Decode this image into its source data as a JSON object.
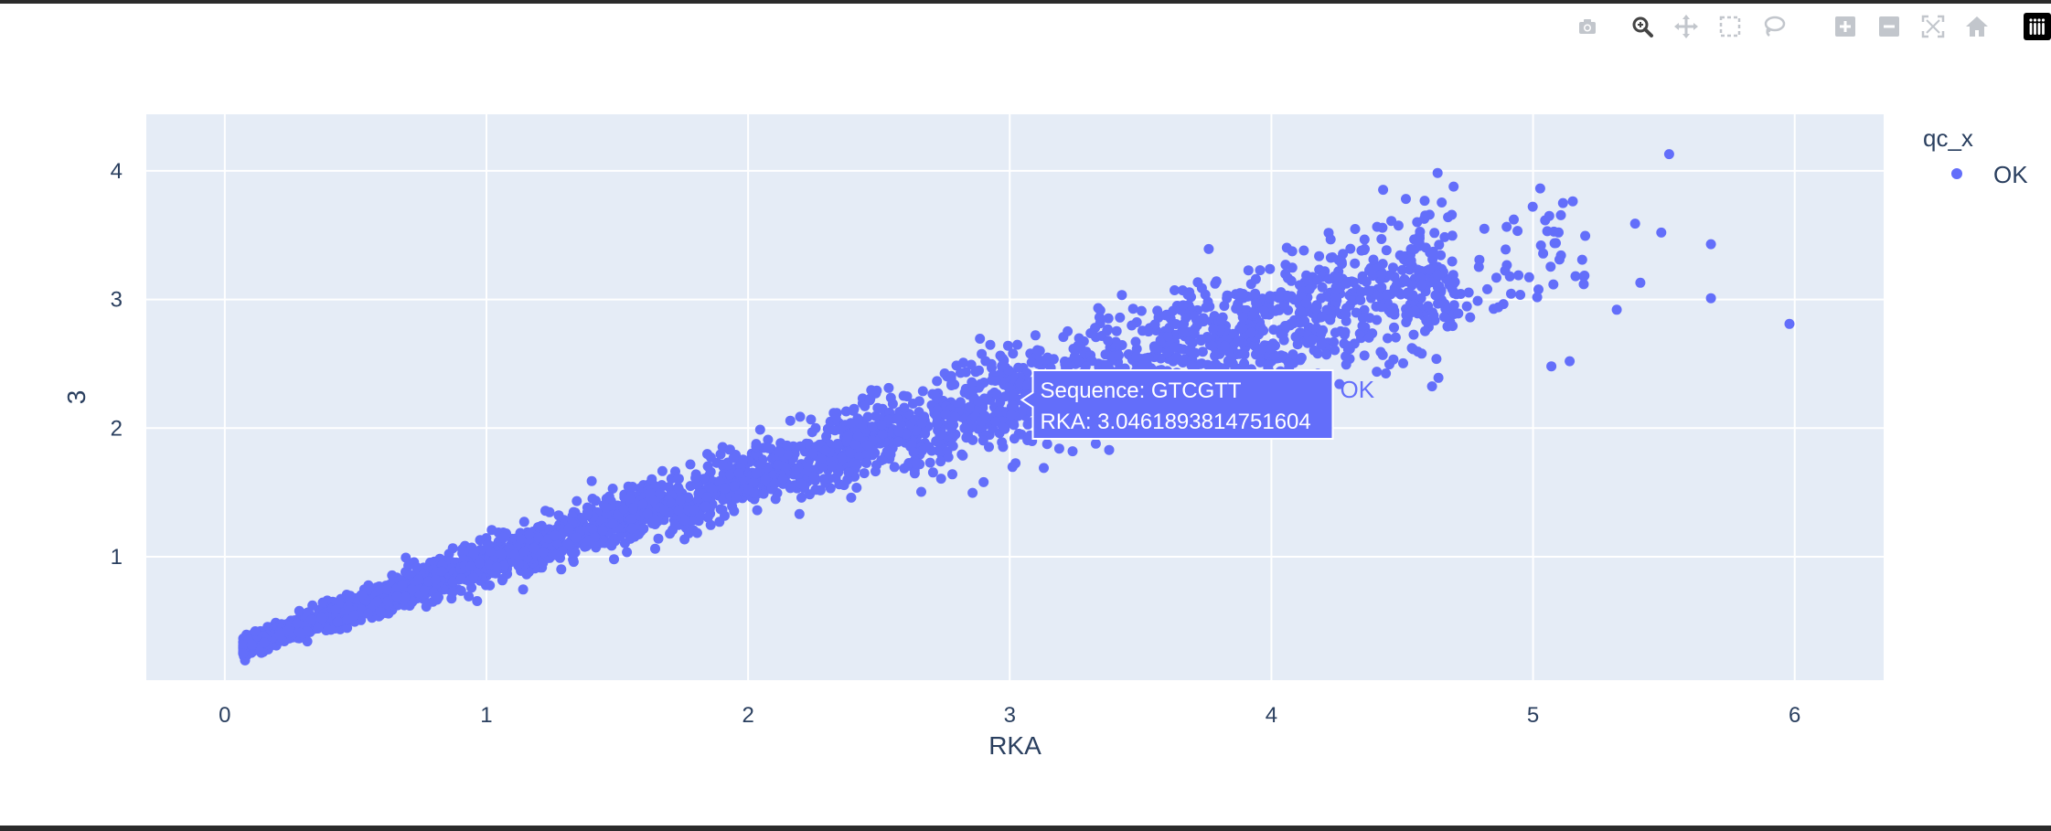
{
  "modebar": {
    "buttons": [
      {
        "name": "camera-icon",
        "title": "Download plot as a png"
      },
      {
        "name": "zoom-icon",
        "title": "Zoom",
        "active": true
      },
      {
        "name": "pan-icon",
        "title": "Pan"
      },
      {
        "name": "box-select-icon",
        "title": "Box Select"
      },
      {
        "name": "lasso-select-icon",
        "title": "Lasso Select"
      },
      {
        "name": "zoom-in-icon",
        "title": "Zoom in"
      },
      {
        "name": "zoom-out-icon",
        "title": "Zoom out"
      },
      {
        "name": "autoscale-icon",
        "title": "Autoscale"
      },
      {
        "name": "reset-axes-icon",
        "title": "Reset axes"
      },
      {
        "name": "plotly-logo-icon",
        "title": "Produced with Plotly"
      }
    ]
  },
  "chart_data": {
    "type": "scatter",
    "xlabel": "RKA",
    "ylabel": "3",
    "xlim": [
      -0.3,
      6.34
    ],
    "ylim": [
      0.04,
      4.44
    ],
    "x_ticks": [
      0,
      1,
      2,
      3,
      4,
      5,
      6
    ],
    "y_ticks": [
      1,
      2,
      3,
      4
    ],
    "grid": true,
    "legend": {
      "title": "qc_x",
      "entries": [
        "OK"
      ],
      "placement": "right"
    },
    "colors": {
      "marker": "#636efa",
      "plot_bg": "#e5ecf6",
      "grid": "#ffffff",
      "text": "#2a3f5f"
    },
    "series": [
      {
        "name": "OK",
        "trend": {
          "x_min": 0.07,
          "x_max": 6.0,
          "y_at_zero": 0.25,
          "slope": 0.72,
          "curvature": -0.022,
          "point_count": 3600
        },
        "outliers": [
          {
            "x": 5.52,
            "y": 4.13
          },
          {
            "x": 5.98,
            "y": 2.81
          },
          {
            "x": 5.68,
            "y": 3.43
          },
          {
            "x": 5.68,
            "y": 3.01
          },
          {
            "x": 5.49,
            "y": 3.52
          },
          {
            "x": 5.39,
            "y": 3.59
          },
          {
            "x": 5.32,
            "y": 2.92
          },
          {
            "x": 5.41,
            "y": 3.13
          },
          {
            "x": 5.03,
            "y": 3.42
          },
          {
            "x": 5.14,
            "y": 2.52
          },
          {
            "x": 5.07,
            "y": 2.48
          },
          {
            "x": 4.86,
            "y": 3.17
          },
          {
            "x": 4.39,
            "y": 3.31
          },
          {
            "x": 4.22,
            "y": 3.16
          },
          {
            "x": 3.82,
            "y": 2.95
          },
          {
            "x": 3.38,
            "y": 1.83
          },
          {
            "x": 3.24,
            "y": 1.82
          },
          {
            "x": 3.13,
            "y": 1.69
          },
          {
            "x": 2.9,
            "y": 1.58
          }
        ]
      }
    ],
    "hover": {
      "point": {
        "x": 3.0461893814751604,
        "y": 2.22
      },
      "lines": [
        "Sequence: GTCGTT",
        "RKA: 3.0461893814751604"
      ],
      "trace_name": "OK"
    }
  }
}
